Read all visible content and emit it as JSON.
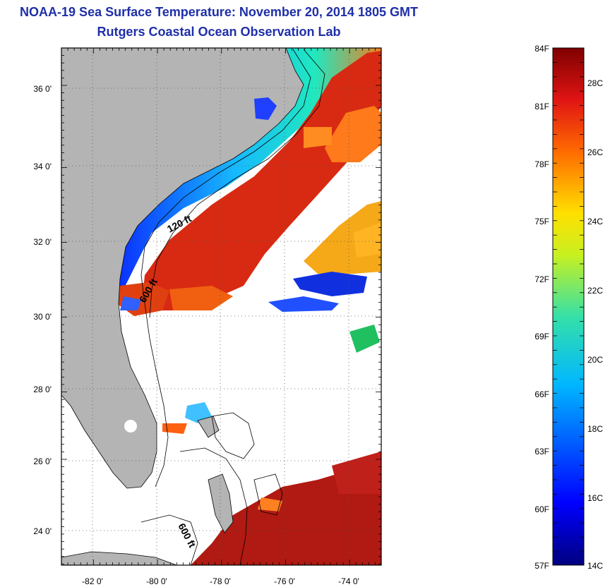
{
  "title": {
    "line1": "NOAA-19 Sea Surface Temperature:  November 20, 2014 1805 GMT",
    "line2": "Rutgers Coastal Ocean Observation Lab"
  },
  "map": {
    "lon_labels": [
      "-82 0'",
      "-80 0'",
      "-78 0'",
      "-76 0'",
      "-74 0'"
    ],
    "lat_labels": [
      "36 0'",
      "34 0'",
      "32 0'",
      "30 0'",
      "28 0'",
      "26 0'",
      "24 0'"
    ],
    "contour_labels": [
      "120 ft",
      "600 ft",
      "600 ft"
    ],
    "colors": {
      "land": "#b4b4b4",
      "cloud": "#ffffff",
      "warm": "#d42a14",
      "grid": "#555555"
    }
  },
  "colorbar": {
    "fahrenheit": [
      "84F",
      "81F",
      "78F",
      "75F",
      "72F",
      "69F",
      "66F",
      "63F",
      "60F",
      "57F"
    ],
    "celsius": [
      "28C",
      "26C",
      "24C",
      "22C",
      "20C",
      "18C",
      "16C",
      "14C"
    ]
  }
}
